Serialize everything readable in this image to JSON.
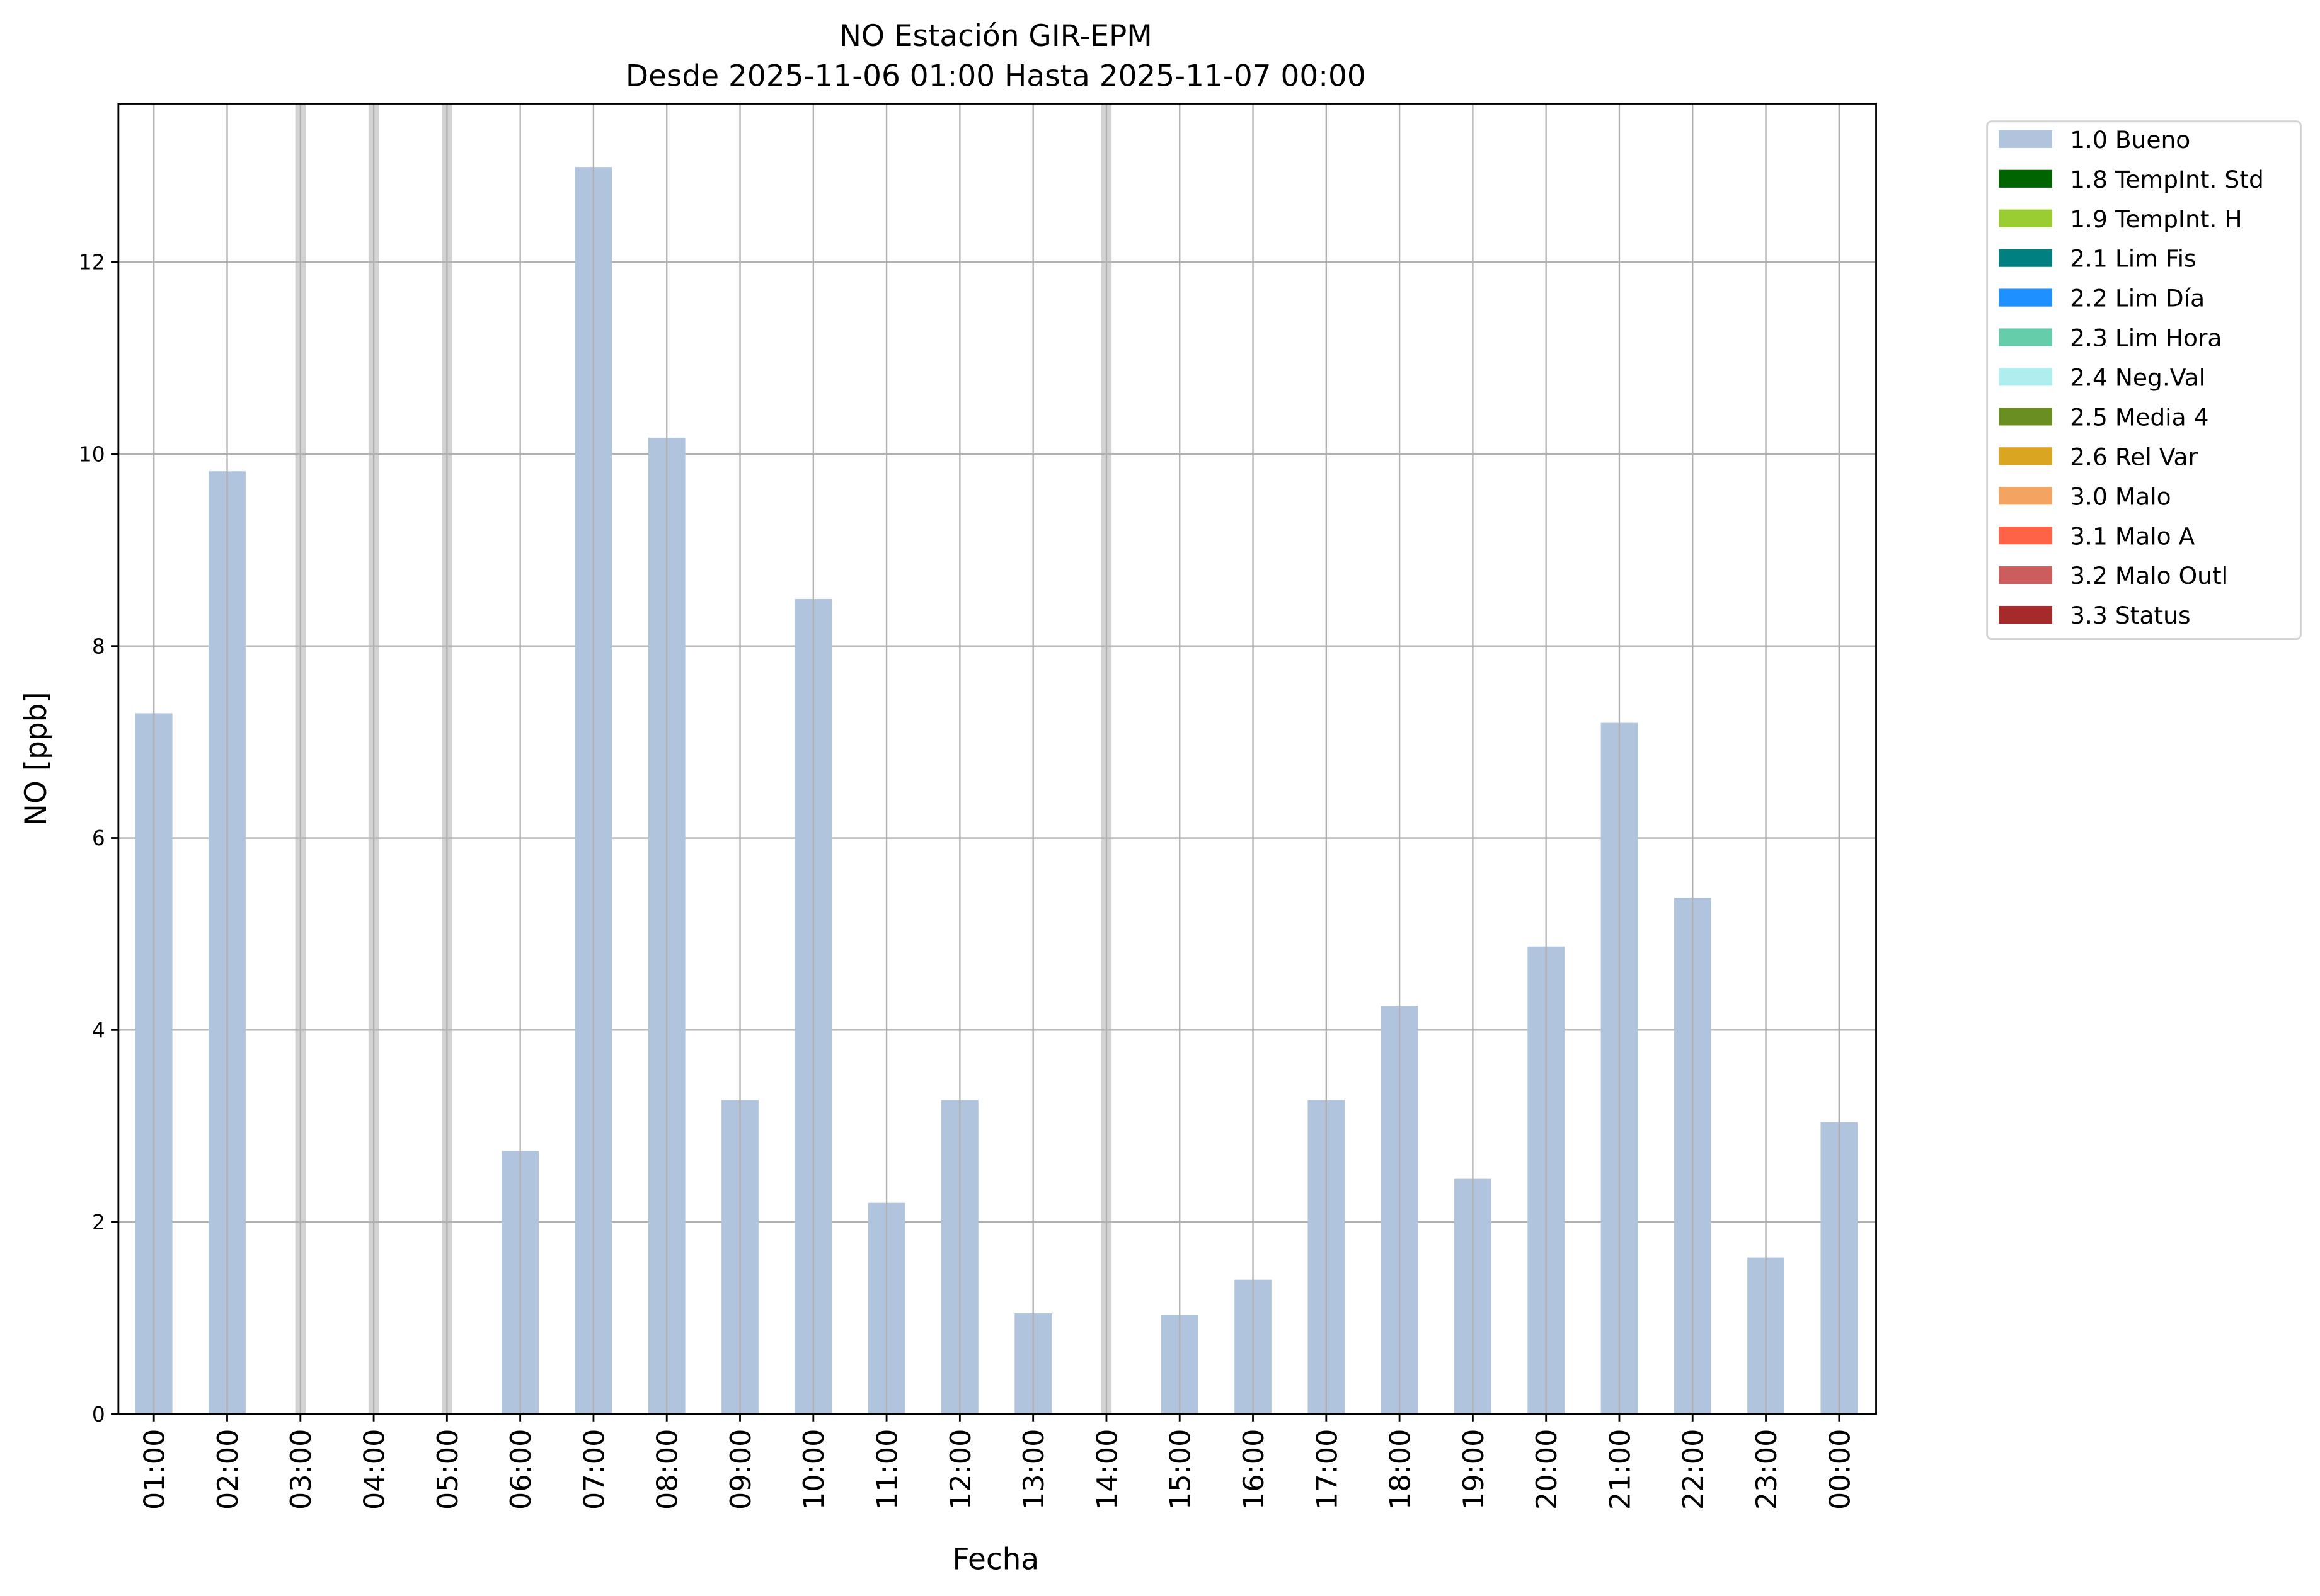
{
  "chart_data": {
    "type": "bar",
    "title": "NO Estación GIR-EPM",
    "subtitle": "Desde 2025-11-06 01:00 Hasta 2025-11-07 00:00",
    "xlabel": "Fecha",
    "ylabel": "NO [ppb]",
    "ylim": [
      0,
      13.65
    ],
    "yticks": [
      0,
      2,
      4,
      6,
      8,
      10,
      12
    ],
    "grid": true,
    "legend_placement": "outside-top-right",
    "categories": [
      "01:00",
      "02:00",
      "03:00",
      "04:00",
      "05:00",
      "06:00",
      "07:00",
      "08:00",
      "09:00",
      "10:00",
      "11:00",
      "12:00",
      "13:00",
      "14:00",
      "15:00",
      "16:00",
      "17:00",
      "18:00",
      "19:00",
      "20:00",
      "21:00",
      "22:00",
      "23:00",
      "00:00"
    ],
    "series": [
      {
        "name": "1.0 Bueno",
        "color": "#b0c4de",
        "values": [
          7.3,
          9.82,
          null,
          null,
          null,
          2.74,
          12.99,
          10.17,
          3.27,
          8.49,
          2.2,
          3.27,
          1.05,
          null,
          1.03,
          1.4,
          3.27,
          4.25,
          2.45,
          4.87,
          7.2,
          5.38,
          1.63,
          3.04
        ]
      }
    ],
    "missing_color": "#d3d3d3",
    "legend": [
      {
        "label": "1.0 Bueno",
        "color": "#b0c4de"
      },
      {
        "label": "1.8 TempInt. Std",
        "color": "#006400"
      },
      {
        "label": "1.9 TempInt. H",
        "color": "#9acd32"
      },
      {
        "label": "2.1 Lim Fis",
        "color": "#008080"
      },
      {
        "label": "2.2 Lim Día",
        "color": "#1e90ff"
      },
      {
        "label": "2.3 Lim Hora",
        "color": "#66cdaa"
      },
      {
        "label": "2.4 Neg.Val",
        "color": "#afeeee"
      },
      {
        "label": "2.5 Media 4",
        "color": "#6b8e23"
      },
      {
        "label": "2.6 Rel Var",
        "color": "#daa520"
      },
      {
        "label": "3.0 Malo",
        "color": "#f4a460"
      },
      {
        "label": "3.1 Malo A",
        "color": "#ff6347"
      },
      {
        "label": "3.2 Malo Outl",
        "color": "#cd5c5c"
      },
      {
        "label": "3.3 Status",
        "color": "#a52a2a"
      }
    ]
  }
}
